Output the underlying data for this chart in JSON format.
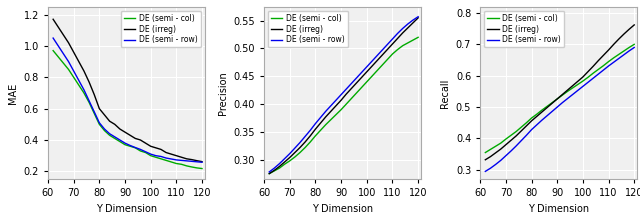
{
  "x": [
    62,
    64,
    66,
    68,
    70,
    72,
    74,
    76,
    78,
    80,
    82,
    84,
    86,
    88,
    90,
    92,
    94,
    96,
    98,
    100,
    102,
    104,
    106,
    108,
    110,
    112,
    114,
    116,
    118,
    120
  ],
  "mae": {
    "semi_col": [
      0.97,
      0.93,
      0.89,
      0.85,
      0.8,
      0.75,
      0.7,
      0.64,
      0.57,
      0.5,
      0.46,
      0.43,
      0.41,
      0.39,
      0.37,
      0.36,
      0.35,
      0.33,
      0.32,
      0.3,
      0.29,
      0.28,
      0.27,
      0.26,
      0.25,
      0.245,
      0.235,
      0.228,
      0.222,
      0.218
    ],
    "irreg": [
      1.17,
      1.12,
      1.07,
      1.02,
      0.96,
      0.9,
      0.84,
      0.77,
      0.69,
      0.6,
      0.56,
      0.52,
      0.5,
      0.47,
      0.45,
      0.43,
      0.41,
      0.4,
      0.38,
      0.36,
      0.35,
      0.34,
      0.32,
      0.31,
      0.3,
      0.29,
      0.28,
      0.275,
      0.268,
      0.262
    ],
    "semi_row": [
      1.05,
      1.0,
      0.95,
      0.9,
      0.84,
      0.78,
      0.72,
      0.65,
      0.58,
      0.51,
      0.47,
      0.44,
      0.42,
      0.4,
      0.38,
      0.365,
      0.352,
      0.34,
      0.325,
      0.31,
      0.3,
      0.295,
      0.285,
      0.279,
      0.273,
      0.27,
      0.267,
      0.264,
      0.261,
      0.258
    ]
  },
  "precision": {
    "semi_col": [
      0.275,
      0.28,
      0.285,
      0.292,
      0.298,
      0.305,
      0.313,
      0.322,
      0.332,
      0.343,
      0.353,
      0.363,
      0.372,
      0.381,
      0.39,
      0.4,
      0.41,
      0.42,
      0.43,
      0.44,
      0.45,
      0.46,
      0.47,
      0.48,
      0.49,
      0.498,
      0.505,
      0.51,
      0.515,
      0.52
    ],
    "irreg": [
      0.275,
      0.281,
      0.288,
      0.296,
      0.304,
      0.313,
      0.322,
      0.332,
      0.343,
      0.355,
      0.366,
      0.377,
      0.387,
      0.397,
      0.407,
      0.418,
      0.428,
      0.438,
      0.448,
      0.458,
      0.468,
      0.478,
      0.488,
      0.498,
      0.508,
      0.518,
      0.528,
      0.537,
      0.546,
      0.555
    ],
    "semi_row": [
      0.278,
      0.285,
      0.293,
      0.302,
      0.311,
      0.321,
      0.331,
      0.342,
      0.353,
      0.365,
      0.376,
      0.387,
      0.397,
      0.407,
      0.417,
      0.427,
      0.437,
      0.447,
      0.457,
      0.467,
      0.477,
      0.487,
      0.497,
      0.507,
      0.517,
      0.527,
      0.536,
      0.544,
      0.551,
      0.557
    ]
  },
  "recall": {
    "semi_col": [
      0.355,
      0.365,
      0.375,
      0.385,
      0.398,
      0.41,
      0.422,
      0.436,
      0.45,
      0.465,
      0.477,
      0.49,
      0.502,
      0.514,
      0.526,
      0.538,
      0.55,
      0.561,
      0.572,
      0.583,
      0.595,
      0.608,
      0.62,
      0.632,
      0.645,
      0.657,
      0.668,
      0.679,
      0.69,
      0.7
    ],
    "irreg": [
      0.332,
      0.342,
      0.354,
      0.366,
      0.38,
      0.394,
      0.408,
      0.424,
      0.44,
      0.456,
      0.47,
      0.484,
      0.498,
      0.512,
      0.526,
      0.54,
      0.554,
      0.568,
      0.582,
      0.596,
      0.613,
      0.63,
      0.648,
      0.665,
      0.682,
      0.7,
      0.717,
      0.733,
      0.748,
      0.762
    ],
    "semi_row": [
      0.295,
      0.305,
      0.317,
      0.33,
      0.345,
      0.36,
      0.376,
      0.393,
      0.41,
      0.428,
      0.443,
      0.458,
      0.472,
      0.486,
      0.5,
      0.514,
      0.527,
      0.54,
      0.553,
      0.566,
      0.579,
      0.592,
      0.605,
      0.618,
      0.631,
      0.643,
      0.655,
      0.667,
      0.679,
      0.69
    ]
  },
  "colors": {
    "semi_col": "#00aa00",
    "irreg": "#000000",
    "semi_row": "#0000ee"
  },
  "legend_labels": {
    "semi_col": "DE (semi - col)",
    "irreg": "DE (irreg)",
    "semi_row": "DE (semi - row)"
  },
  "xlim": [
    62,
    121
  ],
  "xticks": [
    60,
    70,
    80,
    90,
    100,
    110,
    120
  ],
  "mae_ylim": [
    0.15,
    1.25
  ],
  "mae_yticks": [
    0.2,
    0.4,
    0.6,
    0.8,
    1.0,
    1.2
  ],
  "precision_ylim": [
    0.265,
    0.575
  ],
  "precision_yticks": [
    0.3,
    0.35,
    0.4,
    0.45,
    0.5,
    0.55
  ],
  "recall_ylim": [
    0.27,
    0.82
  ],
  "recall_yticks": [
    0.3,
    0.4,
    0.5,
    0.6,
    0.7,
    0.8
  ],
  "xlabel": "Y Dimension",
  "ylabels": [
    "MAE",
    "Precision",
    "Recall"
  ],
  "bg_color": "#f0f0f0"
}
